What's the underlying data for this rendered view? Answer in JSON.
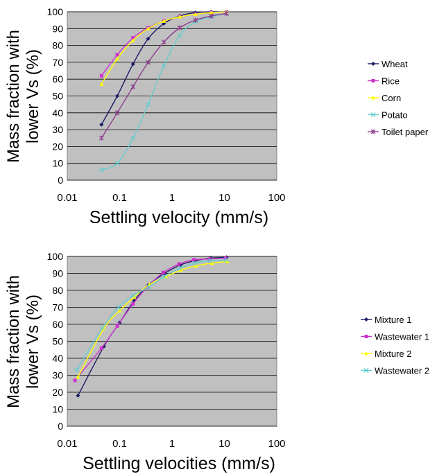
{
  "chart_data": [
    {
      "type": "line",
      "xscale": "log",
      "xlim": [
        0.01,
        100
      ],
      "ylim": [
        0,
        100
      ],
      "xticks": [
        "0.01",
        "0.1",
        "1",
        "10",
        "100"
      ],
      "yticks": [
        "0",
        "10",
        "20",
        "30",
        "40",
        "50",
        "60",
        "70",
        "80",
        "90",
        "100"
      ],
      "xlabel": "Settling velocity (mm/s)",
      "ylabel_line1": "Mass fraction with",
      "ylabel_line2": "lower Vs (%)",
      "grid": "horizontal",
      "legend": "right",
      "series": [
        {
          "name": "Wheat",
          "color": "#1a1a66",
          "marker": "diamond",
          "x": [
            0.045,
            0.09,
            0.18,
            0.35,
            0.7,
            1.4,
            2.8,
            5.6,
            11
          ],
          "y": [
            33,
            50,
            69,
            84,
            93,
            97.5,
            99.5,
            100,
            100
          ]
        },
        {
          "name": "Rice",
          "color": "#cc33cc",
          "marker": "square",
          "x": [
            0.045,
            0.09,
            0.18,
            0.35,
            0.7,
            1.4,
            2.8,
            5.6,
            11
          ],
          "y": [
            62,
            74.5,
            84.5,
            90.5,
            94.5,
            97,
            98.5,
            99.5,
            100
          ]
        },
        {
          "name": "Corn",
          "color": "#ffff00",
          "marker": "triangle",
          "x": [
            0.045,
            0.09,
            0.18,
            0.35,
            0.7,
            1.4,
            2.8,
            5.6,
            11
          ],
          "y": [
            57,
            72,
            83,
            90,
            94.5,
            97,
            98.5,
            99.5,
            100
          ]
        },
        {
          "name": "Potato",
          "color": "#66cccc",
          "marker": "x",
          "x": [
            0.045,
            0.09,
            0.18,
            0.35,
            0.7,
            1.4,
            2.8,
            5.6,
            11
          ],
          "y": [
            6,
            10,
            25,
            45,
            68,
            86,
            94,
            97,
            99
          ]
        },
        {
          "name": "Toilet paper",
          "color": "#8e3d8e",
          "marker": "star",
          "x": [
            0.045,
            0.09,
            0.18,
            0.35,
            0.7,
            1.4,
            2.8,
            5.6,
            11
          ],
          "y": [
            25,
            40,
            55.5,
            70,
            82,
            90.5,
            95,
            97.5,
            99
          ]
        }
      ]
    },
    {
      "type": "line",
      "xscale": "log",
      "xlim": [
        0.01,
        100
      ],
      "ylim": [
        0,
        100
      ],
      "xticks": [
        "0.01",
        "0.1",
        "1",
        "10",
        "100"
      ],
      "yticks": [
        "0",
        "10",
        "20",
        "30",
        "40",
        "50",
        "60",
        "70",
        "80",
        "90",
        "100"
      ],
      "xlabel": "Settling velocities (mm/s)",
      "ylabel_line1": "Mass fraction with",
      "ylabel_line2": "lower Vs (%)",
      "grid": "horizontal",
      "legend": "right",
      "series": [
        {
          "name": "Mixture 1",
          "color": "#1a1a66",
          "marker": "diamond",
          "x": [
            0.016,
            0.05,
            0.1,
            0.19,
            0.35,
            0.72,
            1.45,
            2.8,
            5.5,
            11
          ],
          "y": [
            18,
            47,
            61,
            74,
            83,
            90,
            95,
            97.5,
            99,
            99.5
          ]
        },
        {
          "name": "Wastewater 1",
          "color": "#cc33cc",
          "marker": "square",
          "x": [
            0.014,
            0.045,
            0.09,
            0.18,
            0.34,
            0.68,
            1.35,
            2.6,
            5.2,
            10.5
          ],
          "y": [
            27,
            46,
            59,
            72,
            82,
            90.5,
            95.5,
            98,
            98.5,
            99
          ]
        },
        {
          "name": "Mixture 2",
          "color": "#ffff00",
          "marker": "triangle",
          "x": [
            0.016,
            0.05,
            0.1,
            0.19,
            0.37,
            0.75,
            1.5,
            2.9,
            5.8,
            11.5
          ],
          "y": [
            29,
            57.5,
            68,
            76,
            83.5,
            88,
            92,
            94.5,
            96,
            97
          ]
        },
        {
          "name": "Wastewater 2",
          "color": "#66cccc",
          "marker": "x",
          "x": [
            0.015,
            0.047,
            0.095,
            0.18,
            0.36,
            0.7,
            1.4,
            2.7,
            5.4,
            11
          ],
          "y": [
            33,
            58,
            70,
            77,
            82,
            88,
            93,
            96,
            97.5,
            98
          ]
        }
      ]
    }
  ]
}
